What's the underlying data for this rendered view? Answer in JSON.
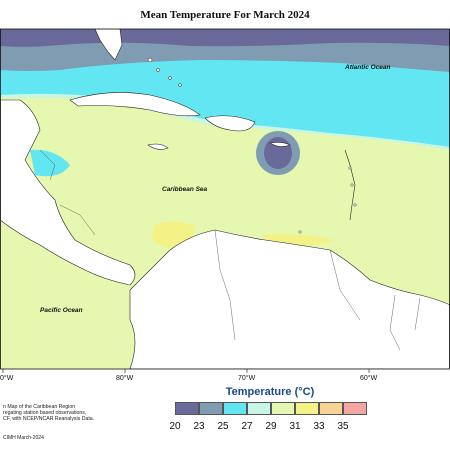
{
  "map": {
    "title": "Mean Temperature For March 2024",
    "labels": {
      "atlantic": "Atlantic Ocean",
      "caribbean": "Caribbean Sea",
      "pacific": "Pacific Ocean"
    },
    "lon_ticks": [
      "0°W",
      "80°W",
      "70°W",
      "60°W"
    ],
    "lat_ticks": [],
    "legend": {
      "title": "Temperature (°C)",
      "values": [
        "20",
        "23",
        "25",
        "27",
        "29",
        "31",
        "33",
        "35"
      ],
      "colors": [
        "#6a6a9a",
        "#7f9cb2",
        "#62e7f2",
        "#c6f7e6",
        "#e6f7b0",
        "#f4f286",
        "#f8d494",
        "#f3a6a2"
      ]
    },
    "credits": [
      "n Map of the Caribbean Region",
      "regating station based observations,",
      "CF, with NCEP/NCAR Reanalysis Data."
    ],
    "stamp": "CIMH March-2024"
  }
}
